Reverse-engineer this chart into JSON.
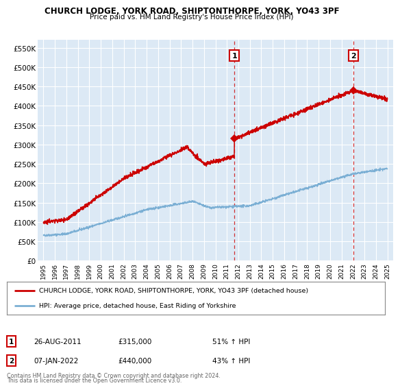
{
  "title": "CHURCH LODGE, YORK ROAD, SHIPTONTHORPE, YORK, YO43 3PF",
  "subtitle": "Price paid vs. HM Land Registry's House Price Index (HPI)",
  "ylim": [
    0,
    570000
  ],
  "yticks": [
    0,
    50000,
    100000,
    150000,
    200000,
    250000,
    300000,
    350000,
    400000,
    450000,
    500000,
    550000
  ],
  "ytick_labels": [
    "£0",
    "£50K",
    "£100K",
    "£150K",
    "£200K",
    "£250K",
    "£300K",
    "£350K",
    "£400K",
    "£450K",
    "£500K",
    "£550K"
  ],
  "xlim_start": 1994.5,
  "xlim_end": 2025.5,
  "bg_color": "#dce9f5",
  "plot_bg_color": "#dce9f5",
  "red_line_color": "#cc0000",
  "blue_line_color": "#7bafd4",
  "vertical_line_color": "#cc0000",
  "marker1_x": 2011.65,
  "marker1_y": 315000,
  "marker2_x": 2022.03,
  "marker2_y": 440000,
  "legend_label1": "CHURCH LODGE, YORK ROAD, SHIPTONTHORPE, YORK, YO43 3PF (detached house)",
  "legend_label2": "HPI: Average price, detached house, East Riding of Yorkshire",
  "annotation1_num": "1",
  "annotation1_date": "26-AUG-2011",
  "annotation1_price": "£315,000",
  "annotation1_hpi": "51% ↑ HPI",
  "annotation2_num": "2",
  "annotation2_date": "07-JAN-2022",
  "annotation2_price": "£440,000",
  "annotation2_hpi": "43% ↑ HPI",
  "footer1": "Contains HM Land Registry data © Crown copyright and database right 2024.",
  "footer2": "This data is licensed under the Open Government Licence v3.0.",
  "xticks": [
    1995,
    1996,
    1997,
    1998,
    1999,
    2000,
    2001,
    2002,
    2003,
    2004,
    2005,
    2006,
    2007,
    2008,
    2009,
    2010,
    2011,
    2012,
    2013,
    2014,
    2015,
    2016,
    2017,
    2018,
    2019,
    2020,
    2021,
    2022,
    2023,
    2024,
    2025
  ]
}
